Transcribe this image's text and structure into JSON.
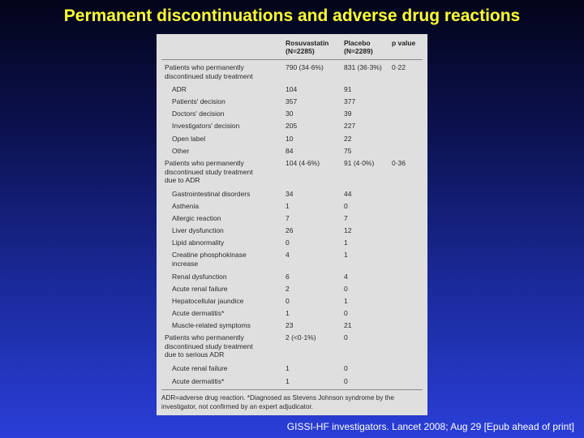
{
  "slide": {
    "title": "Permanent discontinuations and adverse drug reactions",
    "citation": "GISSI-HF investigators. Lancet 2008; Aug 29 [Epub ahead of print]"
  },
  "table": {
    "headers": {
      "rosuvastatin": "Rosuvastatin\n(N=2285)",
      "placebo": "Placebo\n(N=2289)",
      "p_value": "p value"
    },
    "rows": [
      {
        "label": "Patients who permanently\ndiscontinued study treatment",
        "rosuvastatin": "790 (34·6%)",
        "placebo": "831 (36·3%)",
        "p": "0·22",
        "indent": false
      },
      {
        "label": "ADR",
        "rosuvastatin": "104",
        "placebo": "91",
        "p": "",
        "indent": true
      },
      {
        "label": "Patients' decision",
        "rosuvastatin": "357",
        "placebo": "377",
        "p": "",
        "indent": true
      },
      {
        "label": "Doctors' decision",
        "rosuvastatin": "30",
        "placebo": "39",
        "p": "",
        "indent": true
      },
      {
        "label": "Investigators' decision",
        "rosuvastatin": "205",
        "placebo": "227",
        "p": "",
        "indent": true
      },
      {
        "label": "Open label",
        "rosuvastatin": "10",
        "placebo": "22",
        "p": "",
        "indent": true
      },
      {
        "label": "Other",
        "rosuvastatin": "84",
        "placebo": "75",
        "p": "",
        "indent": true
      },
      {
        "label": "Patients who permanently\ndiscontinued study treatment\ndue to ADR",
        "rosuvastatin": "104 (4·6%)",
        "placebo": "91 (4·0%)",
        "p": "0·36",
        "indent": false
      },
      {
        "label": "Gastrointestinal disorders",
        "rosuvastatin": "34",
        "placebo": "44",
        "p": "",
        "indent": true
      },
      {
        "label": "Asthenia",
        "rosuvastatin": "1",
        "placebo": "0",
        "p": "",
        "indent": true
      },
      {
        "label": "Allergic reaction",
        "rosuvastatin": "7",
        "placebo": "7",
        "p": "",
        "indent": true
      },
      {
        "label": "Liver dysfunction",
        "rosuvastatin": "26",
        "placebo": "12",
        "p": "",
        "indent": true
      },
      {
        "label": "Lipid abnormality",
        "rosuvastatin": "0",
        "placebo": "1",
        "p": "",
        "indent": true
      },
      {
        "label": "Creatine phosphokinase\nincrease",
        "rosuvastatin": "4",
        "placebo": "1",
        "p": "",
        "indent": true
      },
      {
        "label": "Renal dysfunction",
        "rosuvastatin": "6",
        "placebo": "4",
        "p": "",
        "indent": true
      },
      {
        "label": "Acute renal failure",
        "rosuvastatin": "2",
        "placebo": "0",
        "p": "",
        "indent": true
      },
      {
        "label": "Hepatocellular jaundice",
        "rosuvastatin": "0",
        "placebo": "1",
        "p": "",
        "indent": true
      },
      {
        "label": "Acute dermatitis*",
        "rosuvastatin": "1",
        "placebo": "0",
        "p": "",
        "indent": true
      },
      {
        "label": "Muscle-related symptoms",
        "rosuvastatin": "23",
        "placebo": "21",
        "p": "",
        "indent": true
      },
      {
        "label": "Patients who permanently\ndiscontinued study treatment\ndue to serious ADR",
        "rosuvastatin": "2 (<0·1%)",
        "placebo": "0",
        "p": "",
        "indent": false
      },
      {
        "label": "Acute renal failure",
        "rosuvastatin": "1",
        "placebo": "0",
        "p": "",
        "indent": true
      },
      {
        "label": "Acute dermatitis*",
        "rosuvastatin": "1",
        "placebo": "0",
        "p": "",
        "indent": true
      }
    ],
    "footnote": "ADR=adverse drug reaction. *Diagnosed as Stevens Johnson syndrome by the investigator, not confirmed by an expert adjudicator."
  }
}
